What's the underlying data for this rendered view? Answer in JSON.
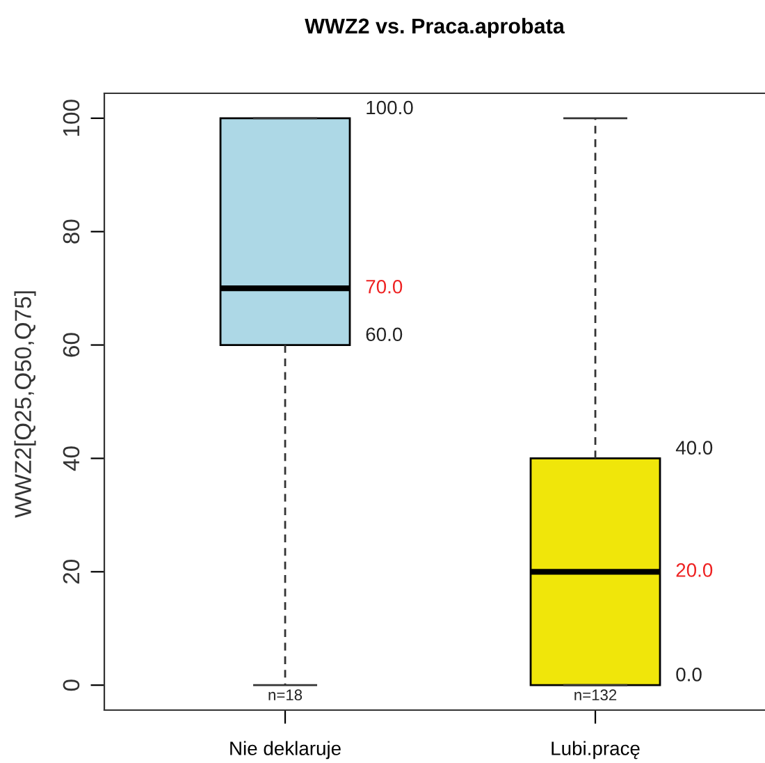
{
  "chart_data": {
    "type": "box",
    "title": "WWZ2 vs. Praca.aprobata",
    "ylabel": "WWZ2[Q25,Q50,Q75]",
    "categories": [
      "Nie deklaruje",
      "Lubi.pracę"
    ],
    "series": [
      {
        "colors": [
          "#add8e6",
          "#f0e60a"
        ],
        "boxes": [
          {
            "low": 0,
            "q1": 60,
            "median": 70,
            "q3": 100,
            "high": 100
          },
          {
            "low": 0,
            "q1": 0,
            "median": 20,
            "q3": 40,
            "high": 100
          }
        ]
      }
    ],
    "ylim": [
      -4.4,
      104.4
    ],
    "yticks": [
      0,
      20,
      40,
      60,
      80,
      100
    ],
    "grid": false,
    "legend": false,
    "annotations": [
      "100.0",
      "70.0",
      "60.0",
      "n=18",
      "40.0",
      "20.0",
      "0.0",
      "n=132"
    ]
  }
}
